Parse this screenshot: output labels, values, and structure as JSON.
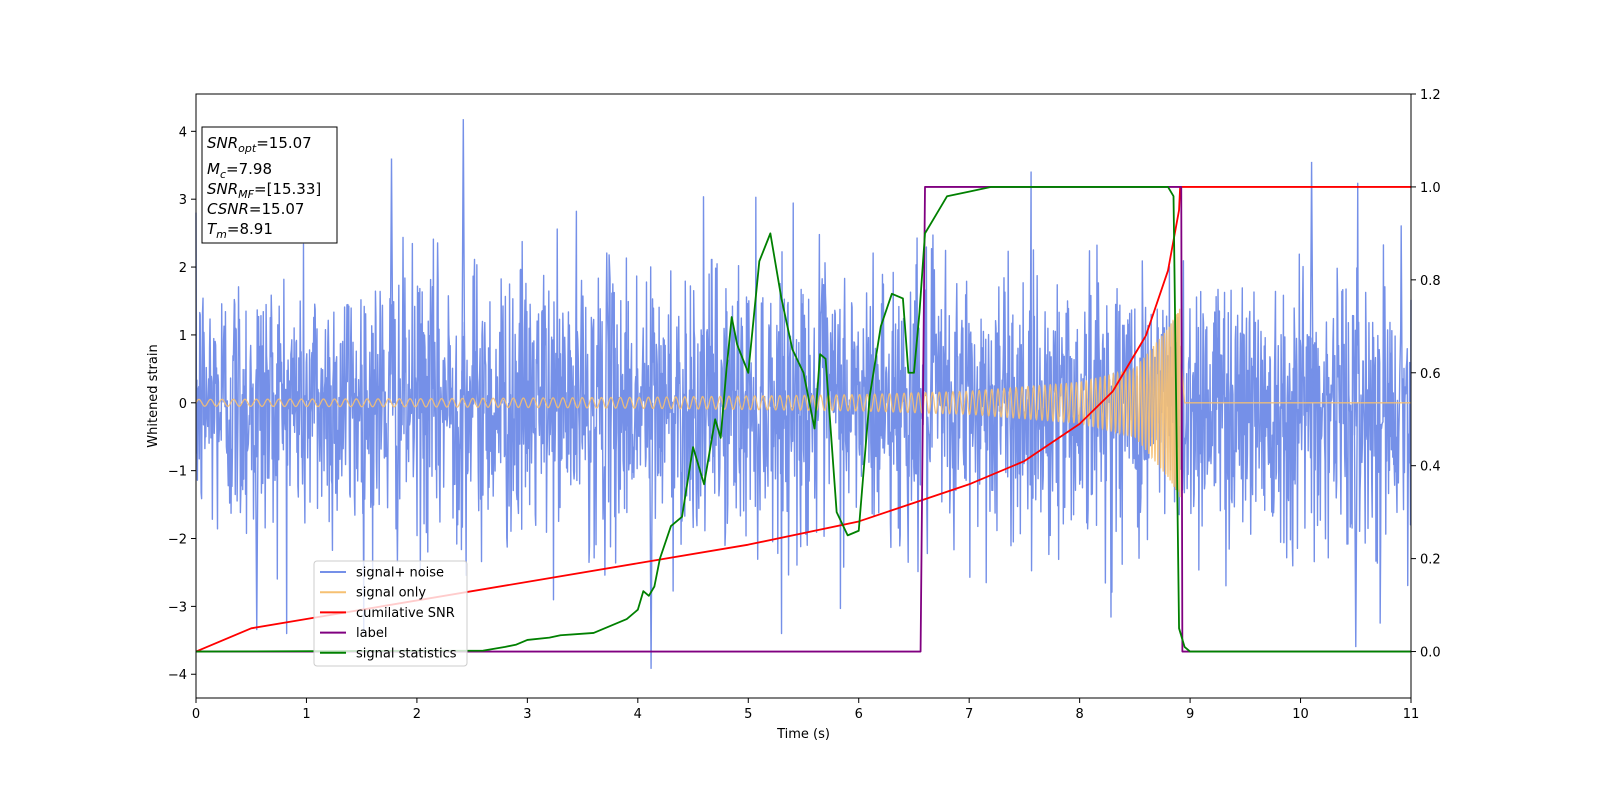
{
  "chart_data": {
    "type": "line",
    "xlabel": "Time (s)",
    "ylabel": "Whitened strain",
    "xlim": [
      0,
      11
    ],
    "ylim_left": [
      -4.35,
      4.55
    ],
    "ylim_right": [
      -0.1,
      1.2
    ],
    "x_ticks": [
      0,
      1,
      2,
      3,
      4,
      5,
      6,
      7,
      8,
      9,
      10,
      11
    ],
    "y_left_ticks": [
      -4,
      -3,
      -2,
      -1,
      0,
      1,
      2,
      3,
      4
    ],
    "y_right_ticks": [
      "0.0",
      "0.2",
      "0.4",
      "0.6",
      "0.8",
      "1.0",
      "1.2"
    ],
    "grid": false,
    "legend_position": "lower-left",
    "info_box": {
      "lines": [
        {
          "main": "SNR",
          "sub": "opt",
          "value": "=15.07"
        },
        {
          "main": "M",
          "sub": "c",
          "value": "=7.98"
        },
        {
          "main": "SNR",
          "sub": "MF",
          "value": "=[15.33]"
        },
        {
          "main": "CSNR",
          "sub": "",
          "value": "=15.07"
        },
        {
          "main": "T",
          "sub": "m",
          "value": "=8.91"
        }
      ]
    },
    "series": [
      {
        "name": "signal+ noise",
        "axis": "left",
        "color": "#7590e8",
        "style": "noise",
        "description_x_range": [
          0,
          11
        ],
        "typical_amplitude": 2.5,
        "peak_values": [
          {
            "x": 2.42,
            "y": 4.18
          },
          {
            "x": 1.77,
            "y": 3.6
          },
          {
            "x": 4.12,
            "y": -3.92
          },
          {
            "x": 10.1,
            "y": 3.55
          },
          {
            "x": 0.55,
            "y": -3.35
          },
          {
            "x": 10.5,
            "y": -3.6
          }
        ]
      },
      {
        "name": "signal only",
        "axis": "left",
        "color": "#f6c072",
        "style": "chirp",
        "x_end": 8.91,
        "envelope": [
          {
            "x": 0,
            "y": 0.05
          },
          {
            "x": 2,
            "y": 0.06
          },
          {
            "x": 4,
            "y": 0.08
          },
          {
            "x": 6,
            "y": 0.12
          },
          {
            "x": 7,
            "y": 0.17
          },
          {
            "x": 8,
            "y": 0.3
          },
          {
            "x": 8.5,
            "y": 0.5
          },
          {
            "x": 8.8,
            "y": 1.1
          },
          {
            "x": 8.91,
            "y": 1.4
          }
        ]
      },
      {
        "name": "cumilative SNR",
        "axis": "right",
        "color": "#ff0000",
        "x": [
          0,
          0.5,
          1,
          2,
          3,
          4,
          5,
          6,
          6.5,
          7,
          7.5,
          8,
          8.3,
          8.6,
          8.8,
          8.9,
          8.91,
          11
        ],
        "y": [
          0.0,
          0.05,
          0.07,
          0.11,
          0.15,
          0.19,
          0.23,
          0.28,
          0.32,
          0.36,
          0.41,
          0.49,
          0.56,
          0.68,
          0.82,
          0.95,
          1.0,
          1.0
        ]
      },
      {
        "name": "label",
        "axis": "right",
        "color": "#800080",
        "x": [
          0,
          6.56,
          6.6,
          8.92,
          8.93,
          11
        ],
        "y": [
          0.0,
          0.0,
          1.0,
          1.0,
          0.0,
          0.0
        ]
      },
      {
        "name": "signal statistics",
        "axis": "right",
        "color": "#008000",
        "x": [
          0,
          2.6,
          2.8,
          2.9,
          3.0,
          3.2,
          3.3,
          3.6,
          3.9,
          4.0,
          4.05,
          4.1,
          4.15,
          4.2,
          4.3,
          4.4,
          4.5,
          4.55,
          4.6,
          4.7,
          4.75,
          4.8,
          4.85,
          4.9,
          5.0,
          5.1,
          5.2,
          5.3,
          5.4,
          5.5,
          5.6,
          5.65,
          5.7,
          5.8,
          5.9,
          6.0,
          6.1,
          6.2,
          6.3,
          6.4,
          6.45,
          6.5,
          6.55,
          6.6,
          6.7,
          6.8,
          7.0,
          7.2,
          7.5,
          8.0,
          8.5,
          8.8,
          8.85,
          8.9,
          8.95,
          9.0,
          11
        ],
        "y": [
          0.0,
          0.002,
          0.01,
          0.015,
          0.025,
          0.03,
          0.035,
          0.04,
          0.07,
          0.09,
          0.13,
          0.12,
          0.14,
          0.2,
          0.27,
          0.29,
          0.44,
          0.4,
          0.36,
          0.5,
          0.46,
          0.6,
          0.72,
          0.66,
          0.6,
          0.84,
          0.9,
          0.76,
          0.65,
          0.6,
          0.48,
          0.64,
          0.63,
          0.3,
          0.25,
          0.26,
          0.55,
          0.7,
          0.77,
          0.76,
          0.6,
          0.6,
          0.73,
          0.9,
          0.94,
          0.98,
          0.99,
          1.0,
          1.0,
          1.0,
          1.0,
          1.0,
          0.98,
          0.05,
          0.01,
          0.0,
          0.0
        ]
      }
    ]
  }
}
